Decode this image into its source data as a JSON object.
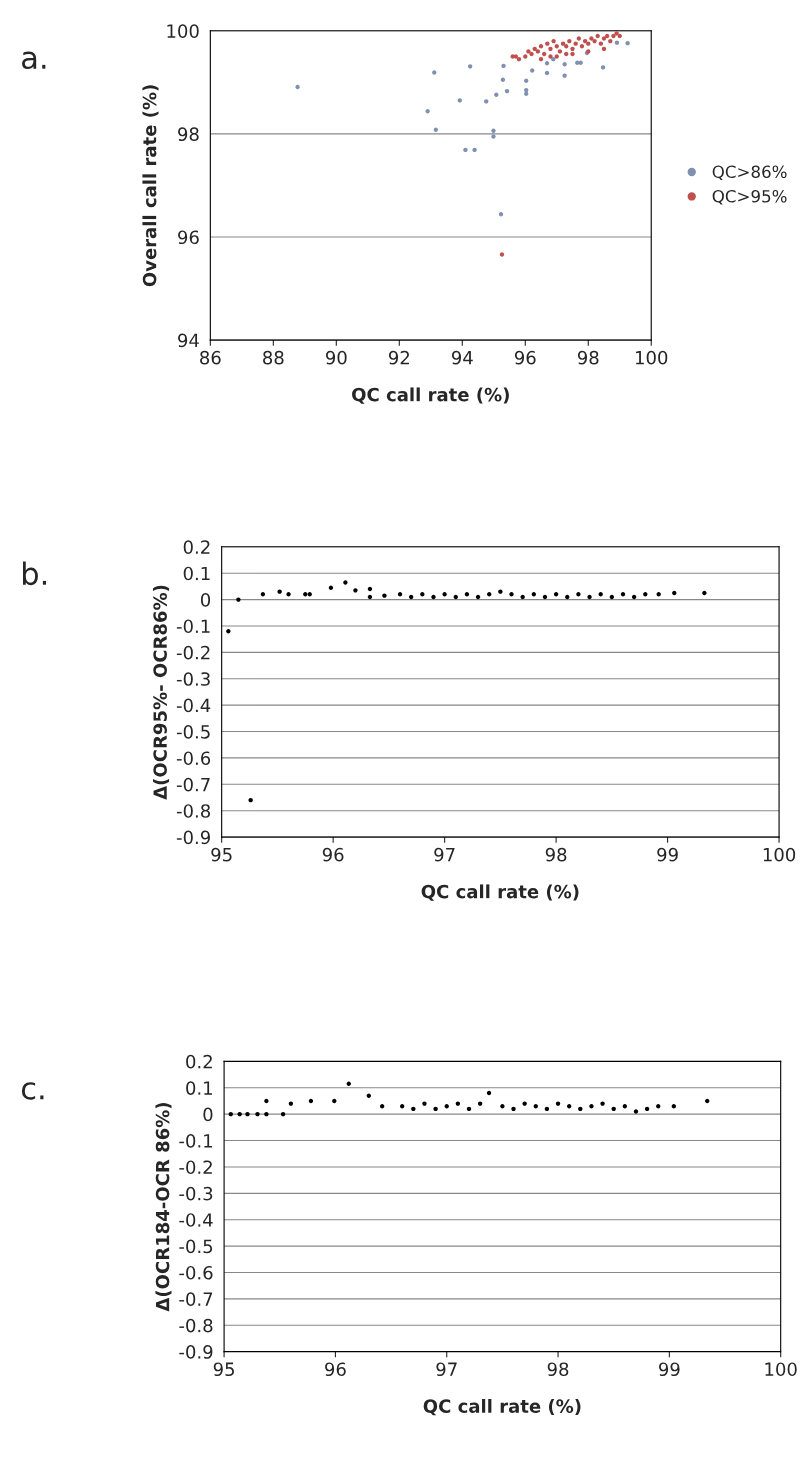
{
  "chart_data": [
    {
      "type": "scatter",
      "annotations": [
        "a."
      ],
      "xlabel": "QC call rate (%)",
      "ylabel": "Overall call rate (%)",
      "xlim": [
        86,
        100
      ],
      "xticks": [
        86,
        88,
        90,
        92,
        94,
        96,
        98,
        100
      ],
      "ylim": [
        94,
        100
      ],
      "yticks": [
        94,
        96,
        98,
        100
      ],
      "grid": "y",
      "legend": "right",
      "marker": "circle",
      "series": [
        {
          "name": "QC>86%",
          "color": "#8090b0",
          "x": [
            88.77,
            93.11,
            94.25,
            92.9,
            93.92,
            93.16,
            94.1,
            94.39,
            94.76,
            95.08,
            95.29,
            95.31,
            94.99,
            94.99,
            95.23,
            95.42,
            96.03,
            96.03,
            96.03,
            96.22,
            96.69,
            96.69,
            97.25,
            97.25,
            97.65,
            97.76,
            98.47,
            99.25,
            98.91,
            96.89,
            97.96
          ],
          "values": [
            98.91,
            99.19,
            99.31,
            98.44,
            98.65,
            98.08,
            97.69,
            97.69,
            98.63,
            98.76,
            99.05,
            99.32,
            98.06,
            97.95,
            96.44,
            98.83,
            99.03,
            98.85,
            98.78,
            99.23,
            99.37,
            99.18,
            99.35,
            99.13,
            99.38,
            99.38,
            99.29,
            99.76,
            99.77,
            99.45,
            99.57
          ]
        },
        {
          "name": "QC>95%",
          "color": "#c0504d",
          "x": [
            95.26,
            95.6,
            95.7,
            95.8,
            96.0,
            96.1,
            96.2,
            96.3,
            96.4,
            96.5,
            96.6,
            96.7,
            96.8,
            96.9,
            97.0,
            97.1,
            97.2,
            97.3,
            97.4,
            97.5,
            97.6,
            97.7,
            97.8,
            97.9,
            98.0,
            98.1,
            98.2,
            98.3,
            98.4,
            98.5,
            98.6,
            98.7,
            98.8,
            98.9,
            99.0,
            96.5,
            97.0,
            97.5,
            98.0,
            98.5,
            96.8,
            97.3
          ],
          "values": [
            95.66,
            99.5,
            99.5,
            99.45,
            99.5,
            99.6,
            99.55,
            99.65,
            99.6,
            99.7,
            99.55,
            99.75,
            99.65,
            99.8,
            99.7,
            99.6,
            99.75,
            99.7,
            99.8,
            99.65,
            99.75,
            99.85,
            99.7,
            99.8,
            99.75,
            99.85,
            99.8,
            99.9,
            99.75,
            99.85,
            99.9,
            99.8,
            99.9,
            99.95,
            99.9,
            99.45,
            99.5,
            99.55,
            99.6,
            99.65,
            99.5,
            99.55
          ]
        }
      ]
    },
    {
      "type": "scatter",
      "annotations": [
        "b."
      ],
      "xlabel": "QC call rate (%)",
      "ylabel": "Δ(OCR95%- OCR86%)",
      "xlim": [
        95,
        100
      ],
      "xticks": [
        95,
        96,
        97,
        98,
        99,
        100
      ],
      "ylim": [
        -0.9,
        0.2
      ],
      "yticks": [
        -0.9,
        -0.8,
        -0.7,
        -0.6,
        -0.5,
        -0.4,
        -0.3,
        -0.2,
        -0.1,
        0,
        0.1,
        0.2
      ],
      "grid": "y",
      "marker": "circle",
      "series": [
        {
          "color": "#000000",
          "x": [
            95.06,
            95.26,
            95.15,
            95.37,
            95.52,
            95.6,
            95.75,
            95.79,
            95.98,
            96.11,
            96.2,
            96.33,
            96.33,
            96.46,
            96.6,
            96.7,
            96.8,
            96.9,
            97.0,
            97.1,
            97.2,
            97.3,
            97.4,
            97.5,
            97.6,
            97.7,
            97.8,
            97.9,
            98.0,
            98.1,
            98.2,
            98.3,
            98.4,
            98.5,
            98.6,
            98.7,
            98.8,
            98.92,
            99.06,
            99.33
          ],
          "values": [
            -0.12,
            -0.76,
            0.0,
            0.02,
            0.03,
            0.02,
            0.02,
            0.02,
            0.045,
            0.065,
            0.035,
            0.04,
            0.01,
            0.015,
            0.02,
            0.01,
            0.02,
            0.01,
            0.02,
            0.01,
            0.02,
            0.01,
            0.02,
            0.03,
            0.02,
            0.01,
            0.02,
            0.01,
            0.02,
            0.01,
            0.02,
            0.01,
            0.02,
            0.01,
            0.02,
            0.01,
            0.02,
            0.02,
            0.025,
            0.025
          ]
        }
      ]
    },
    {
      "type": "scatter",
      "annotations": [
        "c."
      ],
      "xlabel": "QC call rate (%)",
      "ylabel": "Δ(OCR184-OCR 86%)",
      "xlim": [
        95,
        100
      ],
      "xticks": [
        95,
        96,
        97,
        98,
        99,
        100
      ],
      "ylim": [
        -0.9,
        0.2
      ],
      "yticks": [
        -0.9,
        -0.8,
        -0.7,
        -0.6,
        -0.5,
        -0.4,
        -0.3,
        -0.2,
        -0.1,
        0,
        0.1,
        0.2
      ],
      "grid": "y",
      "marker": "circle",
      "series": [
        {
          "color": "#000000",
          "x": [
            95.06,
            95.14,
            95.21,
            95.3,
            95.38,
            95.38,
            95.53,
            95.6,
            95.78,
            95.99,
            96.12,
            96.3,
            96.42,
            96.6,
            96.7,
            96.8,
            96.9,
            97.0,
            97.1,
            97.2,
            97.3,
            97.38,
            97.5,
            97.6,
            97.7,
            97.8,
            97.9,
            98.0,
            98.1,
            98.2,
            98.3,
            98.4,
            98.5,
            98.6,
            98.7,
            98.8,
            98.9,
            99.04,
            99.34
          ],
          "values": [
            0.0,
            0.0,
            0.0,
            0.0,
            0.05,
            0.0,
            0.0,
            0.04,
            0.05,
            0.05,
            0.115,
            0.07,
            0.03,
            0.03,
            0.02,
            0.04,
            0.02,
            0.03,
            0.04,
            0.02,
            0.04,
            0.08,
            0.03,
            0.02,
            0.04,
            0.03,
            0.02,
            0.04,
            0.03,
            0.02,
            0.03,
            0.04,
            0.02,
            0.03,
            0.01,
            0.02,
            0.03,
            0.03,
            0.05
          ]
        }
      ]
    }
  ]
}
